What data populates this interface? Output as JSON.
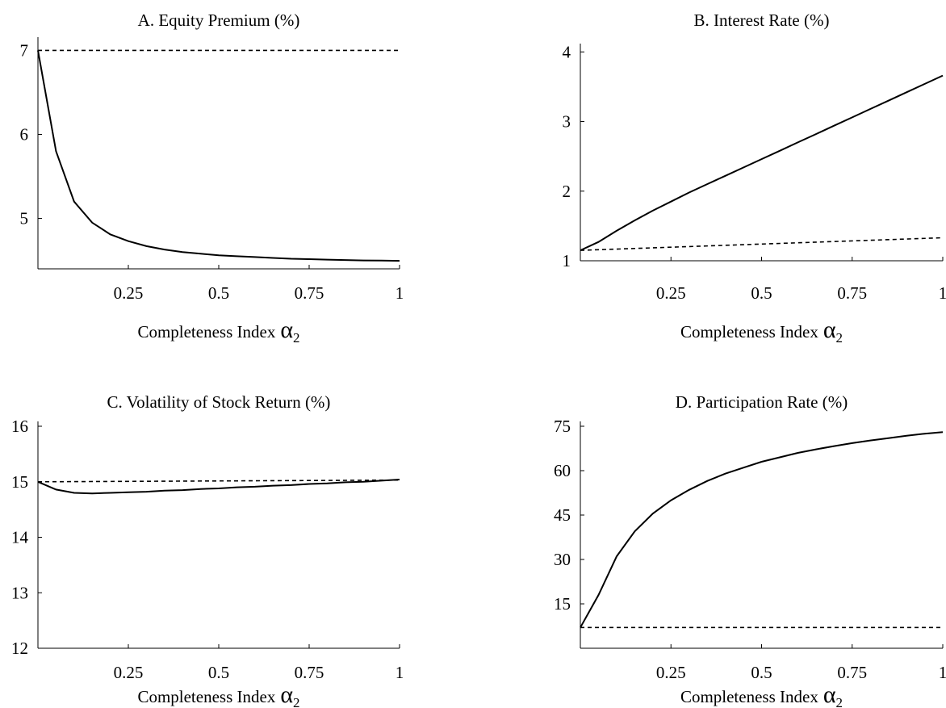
{
  "chart_data": [
    {
      "type": "line",
      "title": "A. Equity Premium (%)",
      "xlabel": "Completeness Index",
      "xlabel_symbol": "α",
      "xlabel_subscript": "2",
      "xlim": [
        0,
        1
      ],
      "ylim": [
        4.4,
        7.1
      ],
      "xticks": [
        0.25,
        0.5,
        0.75,
        1
      ],
      "xtick_labels": [
        "0.25",
        "0.5",
        "0.75",
        "1"
      ],
      "yticks": [
        5,
        6,
        7
      ],
      "ytick_labels": [
        "5",
        "6",
        "7"
      ],
      "series": [
        {
          "style": "solid",
          "x": [
            0,
            0.05,
            0.1,
            0.15,
            0.2,
            0.25,
            0.3,
            0.35,
            0.4,
            0.45,
            0.5,
            0.55,
            0.6,
            0.65,
            0.7,
            0.75,
            0.8,
            0.85,
            0.9,
            0.95,
            1
          ],
          "y": [
            7.0,
            5.8,
            5.2,
            4.95,
            4.81,
            4.73,
            4.67,
            4.63,
            4.6,
            4.58,
            4.56,
            4.55,
            4.54,
            4.53,
            4.52,
            4.515,
            4.51,
            4.505,
            4.5,
            4.498,
            4.495
          ]
        },
        {
          "style": "dashed",
          "x": [
            0,
            1
          ],
          "y": [
            7.0,
            7.0
          ]
        }
      ]
    },
    {
      "type": "line",
      "title": "B. Interest Rate (%)",
      "xlabel": "Completeness Index",
      "xlabel_symbol": "α",
      "xlabel_subscript": "2",
      "xlim": [
        0,
        1
      ],
      "ylim": [
        1,
        4.05
      ],
      "xticks": [
        0.25,
        0.5,
        0.75,
        1
      ],
      "xtick_labels": [
        "0.25",
        "0.5",
        "0.75",
        "1"
      ],
      "yticks": [
        1,
        2,
        3,
        4
      ],
      "ytick_labels": [
        "1",
        "2",
        "3",
        "4"
      ],
      "series": [
        {
          "style": "solid",
          "x": [
            0,
            0.05,
            0.1,
            0.15,
            0.2,
            0.25,
            0.3,
            0.35,
            0.4,
            0.45,
            0.5,
            0.55,
            0.6,
            0.65,
            0.7,
            0.75,
            0.8,
            0.85,
            0.9,
            0.95,
            1
          ],
          "y": [
            1.15,
            1.27,
            1.43,
            1.58,
            1.72,
            1.85,
            1.98,
            2.1,
            2.22,
            2.34,
            2.46,
            2.58,
            2.7,
            2.82,
            2.94,
            3.06,
            3.18,
            3.3,
            3.42,
            3.54,
            3.66
          ]
        },
        {
          "style": "dashed",
          "x": [
            0,
            1
          ],
          "y": [
            1.15,
            1.33
          ]
        }
      ]
    },
    {
      "type": "line",
      "title": "C. Volatility of Stock Return (%)",
      "xlabel": "Completeness Index",
      "xlabel_symbol": "α",
      "xlabel_subscript": "2",
      "xlim": [
        0,
        1
      ],
      "ylim": [
        12,
        16
      ],
      "xticks": [
        0.25,
        0.5,
        0.75,
        1
      ],
      "xtick_labels": [
        "0.25",
        "0.5",
        "0.75",
        "1"
      ],
      "yticks": [
        12,
        13,
        14,
        15,
        16
      ],
      "ytick_labels": [
        "12",
        "13",
        "14",
        "15",
        "16"
      ],
      "series": [
        {
          "style": "solid",
          "x": [
            0,
            0.05,
            0.1,
            0.15,
            0.2,
            0.25,
            0.3,
            0.35,
            0.4,
            0.45,
            0.5,
            0.55,
            0.6,
            0.65,
            0.7,
            0.75,
            0.8,
            0.85,
            0.9,
            0.95,
            1
          ],
          "y": [
            15.0,
            14.86,
            14.8,
            14.79,
            14.8,
            14.81,
            14.82,
            14.84,
            14.85,
            14.87,
            14.88,
            14.9,
            14.91,
            14.93,
            14.94,
            14.96,
            14.97,
            14.99,
            15.0,
            15.02,
            15.04
          ]
        },
        {
          "style": "dashed",
          "x": [
            0,
            1
          ],
          "y": [
            15.0,
            15.03
          ]
        }
      ]
    },
    {
      "type": "line",
      "title": "D. Participation Rate (%)",
      "xlabel": "Completeness Index",
      "xlabel_symbol": "α",
      "xlabel_subscript": "2",
      "xlim": [
        0,
        1
      ],
      "ylim": [
        0,
        75
      ],
      "xticks": [
        0.25,
        0.5,
        0.75,
        1
      ],
      "xtick_labels": [
        "0.25",
        "0.5",
        "0.75",
        "1"
      ],
      "yticks": [
        15,
        30,
        45,
        60,
        75
      ],
      "ytick_labels": [
        "15",
        "30",
        "45",
        "60",
        "75"
      ],
      "series": [
        {
          "style": "solid",
          "x": [
            0,
            0.05,
            0.1,
            0.15,
            0.2,
            0.25,
            0.3,
            0.35,
            0.4,
            0.45,
            0.5,
            0.55,
            0.6,
            0.65,
            0.7,
            0.75,
            0.8,
            0.85,
            0.9,
            0.95,
            1
          ],
          "y": [
            7,
            18,
            31,
            39.5,
            45.5,
            50,
            53.5,
            56.5,
            59,
            61,
            63,
            64.5,
            66,
            67.2,
            68.3,
            69.3,
            70.2,
            71,
            71.8,
            72.5,
            73
          ]
        },
        {
          "style": "dashed",
          "x": [
            0,
            1
          ],
          "y": [
            7,
            7
          ]
        }
      ]
    }
  ]
}
